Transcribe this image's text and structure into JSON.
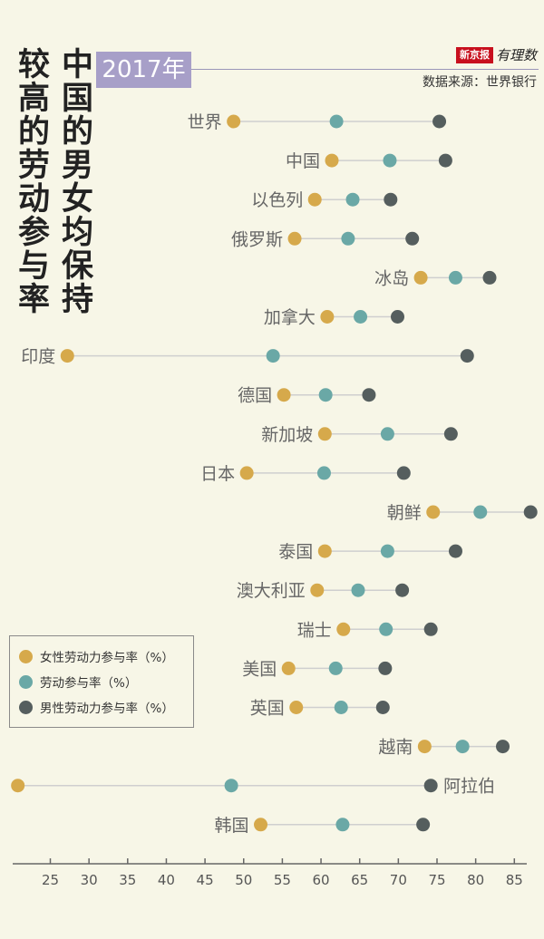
{
  "header": {
    "title_line1": "中国的男女均保持",
    "title_line2": "较高的劳动参与率",
    "year_badge": "2017年",
    "brand_box": "新京报",
    "brand_script": "有理数",
    "source": "数据来源：世界银行"
  },
  "colors": {
    "female": "#d6a94b",
    "overall": "#6aa8a6",
    "male": "#555e5e",
    "connector": "#cfcfcf",
    "axis": "#666666",
    "country_label": "#666666"
  },
  "chart_data": {
    "type": "dumbbell",
    "title": "中国的男女均保持较高的劳动参与率",
    "xlim": [
      20,
      87
    ],
    "xticks": [
      25,
      30,
      35,
      40,
      45,
      50,
      55,
      60,
      65,
      70,
      75,
      80,
      85
    ],
    "series": [
      {
        "key": "female",
        "name": "女性劳动力参与率（%）"
      },
      {
        "key": "overall",
        "name": "劳动参与率（%）"
      },
      {
        "key": "male",
        "name": "男性劳动力参与率（%）"
      }
    ],
    "rows": [
      {
        "country": "世界",
        "female": 48.7,
        "overall": 62.0,
        "male": 75.3,
        "label_side": "left"
      },
      {
        "country": "中国",
        "female": 61.4,
        "overall": 68.9,
        "male": 76.1,
        "label_side": "left"
      },
      {
        "country": "以色列",
        "female": 59.2,
        "overall": 64.1,
        "male": 69.0,
        "label_side": "left"
      },
      {
        "country": "俄罗斯",
        "female": 56.6,
        "overall": 63.5,
        "male": 71.8,
        "label_side": "left"
      },
      {
        "country": "冰岛",
        "female": 72.9,
        "overall": 77.4,
        "male": 81.8,
        "label_side": "left"
      },
      {
        "country": "加拿大",
        "female": 60.8,
        "overall": 65.1,
        "male": 69.9,
        "label_side": "left"
      },
      {
        "country": "印度",
        "female": 27.2,
        "overall": 53.8,
        "male": 78.9,
        "label_side": "left"
      },
      {
        "country": "德国",
        "female": 55.2,
        "overall": 60.6,
        "male": 66.2,
        "label_side": "left"
      },
      {
        "country": "新加坡",
        "female": 60.5,
        "overall": 68.6,
        "male": 76.8,
        "label_side": "left"
      },
      {
        "country": "日本",
        "female": 50.4,
        "overall": 60.4,
        "male": 70.7,
        "label_side": "left"
      },
      {
        "country": "朝鲜",
        "female": 74.5,
        "overall": 80.6,
        "male": 87.1,
        "label_side": "left"
      },
      {
        "country": "泰国",
        "female": 60.5,
        "overall": 68.6,
        "male": 77.4,
        "label_side": "left"
      },
      {
        "country": "澳大利亚",
        "female": 59.5,
        "overall": 64.8,
        "male": 70.5,
        "label_side": "left"
      },
      {
        "country": "瑞士",
        "female": 62.9,
        "overall": 68.4,
        "male": 74.2,
        "label_side": "left"
      },
      {
        "country": "美国",
        "female": 55.8,
        "overall": 61.9,
        "male": 68.3,
        "label_side": "left"
      },
      {
        "country": "英国",
        "female": 56.8,
        "overall": 62.6,
        "male": 68.0,
        "label_side": "left"
      },
      {
        "country": "越南",
        "female": 73.4,
        "overall": 78.3,
        "male": 83.5,
        "label_side": "left"
      },
      {
        "country": "阿拉伯",
        "female": 20.8,
        "overall": 48.4,
        "male": 74.2,
        "label_side": "right"
      },
      {
        "country": "韩国",
        "female": 52.2,
        "overall": 62.8,
        "male": 73.2,
        "label_side": "left"
      }
    ]
  }
}
